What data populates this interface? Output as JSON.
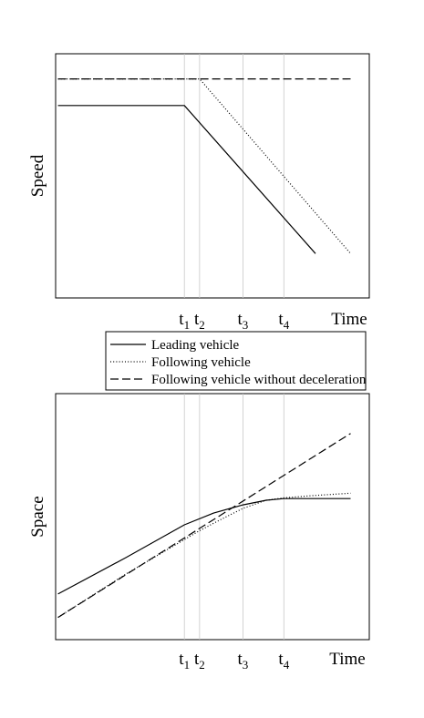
{
  "chart_data": [
    {
      "type": "line",
      "ylabel": "Speed",
      "xlabel": "Time",
      "x_marks": [
        {
          "base": "t",
          "sub": "1",
          "x": 1.0
        },
        {
          "base": "t",
          "sub": "2",
          "x": 1.13
        },
        {
          "base": "t",
          "sub": "3",
          "x": 1.5
        },
        {
          "base": "t",
          "sub": "4",
          "x": 1.85
        }
      ],
      "xlim": [
        -0.1,
        2.58
      ],
      "ylim": [
        -0.3,
        1.35
      ],
      "series": [
        {
          "name": "Leading vehicle",
          "style": "solid",
          "x": [
            -0.08,
            1.0,
            2.12
          ],
          "y": [
            1.0,
            1.0,
            0.0
          ]
        },
        {
          "name": "Following vehicle",
          "style": "dotted",
          "x": [
            -0.08,
            1.13,
            2.42
          ],
          "y": [
            1.18,
            1.18,
            0.0
          ]
        },
        {
          "name": "Following vehicle without deceleration",
          "style": "dashed",
          "x": [
            -0.08,
            2.42
          ],
          "y": [
            1.18,
            1.18
          ]
        }
      ]
    },
    {
      "type": "line",
      "ylabel": "Space",
      "xlabel": "Time",
      "x_marks": [
        {
          "base": "t",
          "sub": "1",
          "x": 1.0
        },
        {
          "base": "t",
          "sub": "2",
          "x": 1.13
        },
        {
          "base": "t",
          "sub": "3",
          "x": 1.5
        },
        {
          "base": "t",
          "sub": "4",
          "x": 1.85
        }
      ],
      "xlim": [
        -0.1,
        2.58
      ],
      "ylim": [
        -0.05,
        1.0
      ],
      "series": [
        {
          "name": "Leading vehicle",
          "style": "solid",
          "x": [
            -0.08,
            0.5,
            1.0,
            1.25,
            1.5,
            1.7,
            1.85,
            2.1,
            2.42
          ],
          "y": [
            0.145,
            0.3,
            0.44,
            0.49,
            0.525,
            0.545,
            0.552,
            0.552,
            0.552
          ]
        },
        {
          "name": "Following vehicle",
          "style": "dotted",
          "x": [
            -0.08,
            0.5,
            1.13,
            1.3,
            1.5,
            1.7,
            1.85,
            2.1,
            2.42
          ],
          "y": [
            0.045,
            0.23,
            0.415,
            0.46,
            0.51,
            0.545,
            0.555,
            0.565,
            0.575
          ]
        },
        {
          "name": "Following vehicle without deceleration",
          "style": "dashed",
          "x": [
            -0.08,
            2.42
          ],
          "y": [
            0.045,
            0.83
          ]
        }
      ]
    }
  ],
  "legend": {
    "placement": "between panels",
    "entries": [
      {
        "label": "Leading vehicle",
        "style": "solid"
      },
      {
        "label": "Following vehicle",
        "style": "dotted"
      },
      {
        "label": "Following vehicle without deceleration",
        "style": "dashed"
      }
    ]
  },
  "colors": {
    "lines": "#000000",
    "frame": "#000000",
    "marker_lines": "#c8c8c8"
  }
}
